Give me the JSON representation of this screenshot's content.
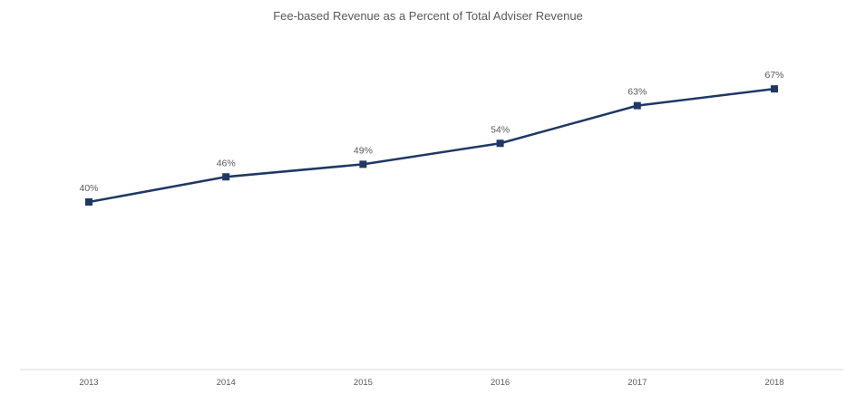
{
  "chart_data": {
    "type": "line",
    "title": "Fee-based Revenue as a Percent of Total Adviser Revenue",
    "xlabel": "",
    "ylabel": "",
    "categories": [
      "2013",
      "2014",
      "2015",
      "2016",
      "2017",
      "2018"
    ],
    "series": [
      {
        "values": [
          40,
          46,
          49,
          54,
          63,
          67
        ],
        "data_labels": [
          "40%",
          "46%",
          "49%",
          "54%",
          "63%",
          "67%"
        ],
        "color": "#1f3864",
        "marker": "square"
      }
    ],
    "ylim": [
      0,
      80
    ],
    "grid": false,
    "legend": "none",
    "axis_color": "#d9d9d9"
  }
}
